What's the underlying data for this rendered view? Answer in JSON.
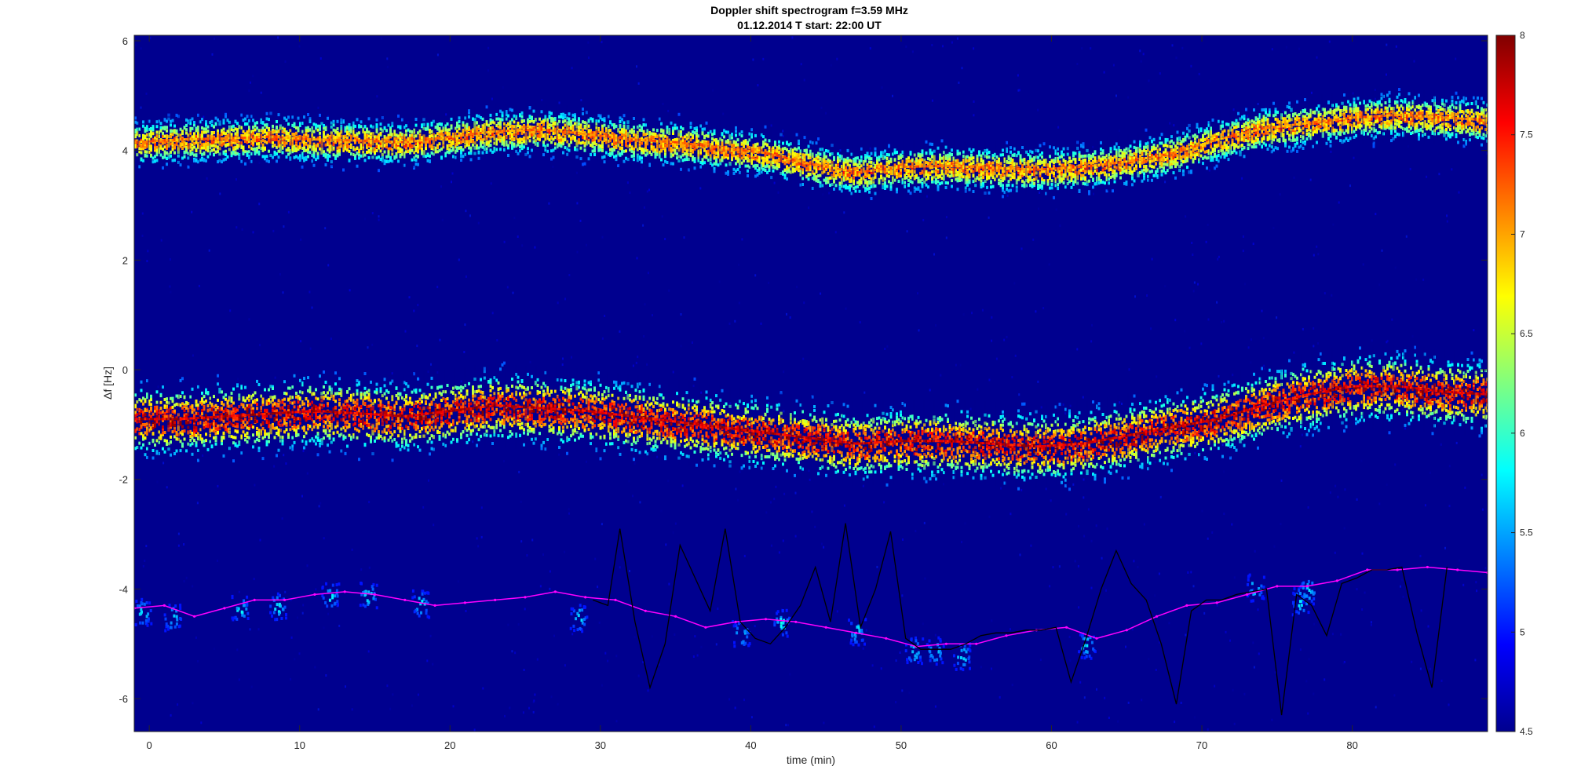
{
  "chart_data": {
    "type": "heatmap",
    "title": "Doppler shift spectrogram f=3.59 MHz",
    "subtitle": "01.12.2014   T start: 22:00 UT",
    "xlabel": "time (min)",
    "ylabel": "Δf [Hz]",
    "xlim": [
      -1,
      89
    ],
    "ylim": [
      -6.6,
      6.1
    ],
    "x_ticks": [
      0,
      10,
      20,
      30,
      40,
      50,
      60,
      70,
      80
    ],
    "x_tick_labels": [
      "0",
      "10",
      "20",
      "30",
      "40",
      "50",
      "60",
      "70",
      "80"
    ],
    "y_ticks": [
      6,
      4,
      2,
      0,
      -2,
      -4,
      -6
    ],
    "y_tick_labels": [
      "6",
      "4",
      "2",
      "0",
      "-2",
      "-4",
      "-6"
    ],
    "colormap": "jet",
    "background_color": "#00008f",
    "colorbar": {
      "range": [
        4.5,
        8
      ],
      "ticks": [
        8,
        7.5,
        7,
        6.5,
        6,
        5.5,
        5,
        4.5
      ],
      "tick_labels": [
        "8",
        "7.5",
        "7",
        "6.5",
        "6",
        "5.5",
        "5",
        "4.5"
      ]
    },
    "grid": false,
    "series": [
      {
        "style": "spectral-band",
        "x": [
          -1,
          2,
          5,
          8,
          11,
          14,
          17,
          20,
          23,
          26,
          29,
          32,
          35,
          38,
          41,
          44,
          47,
          50,
          53,
          56,
          59,
          62,
          65,
          68,
          71,
          74,
          77,
          80,
          83,
          86,
          89
        ],
        "y": [
          4.15,
          4.2,
          4.22,
          4.25,
          4.2,
          4.18,
          4.15,
          4.25,
          4.35,
          4.38,
          4.3,
          4.2,
          4.15,
          4.05,
          3.95,
          3.75,
          3.6,
          3.7,
          3.72,
          3.68,
          3.65,
          3.7,
          3.8,
          3.95,
          4.2,
          4.4,
          4.5,
          4.6,
          4.65,
          4.6,
          4.55
        ],
        "peak": 7.4
      },
      {
        "style": "spectral-band",
        "x": [
          -1,
          2,
          5,
          8,
          11,
          14,
          17,
          20,
          23,
          26,
          29,
          32,
          35,
          38,
          41,
          44,
          47,
          50,
          53,
          56,
          59,
          62,
          65,
          68,
          71,
          74,
          77,
          80,
          83,
          86,
          89
        ],
        "y": [
          -0.9,
          -0.9,
          -0.85,
          -0.8,
          -0.75,
          -0.8,
          -0.85,
          -0.75,
          -0.65,
          -0.7,
          -0.75,
          -0.85,
          -0.95,
          -1.05,
          -1.15,
          -1.25,
          -1.35,
          -1.3,
          -1.3,
          -1.35,
          -1.4,
          -1.35,
          -1.2,
          -1.05,
          -0.9,
          -0.65,
          -0.45,
          -0.3,
          -0.3,
          -0.4,
          -0.45
        ],
        "peak": 8.0
      },
      {
        "style": "magenta-line",
        "color": "#ff00ff",
        "x": [
          -1,
          1,
          3,
          5,
          7,
          9,
          11,
          13,
          15,
          17,
          19,
          21,
          23,
          25,
          27,
          29,
          31,
          33,
          35,
          37,
          39,
          41,
          43,
          45,
          47,
          49,
          51,
          53,
          55,
          57,
          59,
          61,
          63,
          65,
          67,
          69,
          71,
          73,
          75,
          77,
          79,
          81,
          83,
          85,
          87,
          89
        ],
        "y": [
          -4.35,
          -4.3,
          -4.5,
          -4.35,
          -4.2,
          -4.2,
          -4.1,
          -4.05,
          -4.1,
          -4.2,
          -4.3,
          -4.25,
          -4.2,
          -4.15,
          -4.05,
          -4.15,
          -4.2,
          -4.4,
          -4.5,
          -4.7,
          -4.6,
          -4.55,
          -4.6,
          -4.7,
          -4.8,
          -4.9,
          -5.05,
          -5.0,
          -5.0,
          -4.85,
          -4.75,
          -4.7,
          -4.9,
          -4.75,
          -4.5,
          -4.3,
          -4.25,
          -4.1,
          -3.95,
          -3.95,
          -3.85,
          -3.65,
          -3.65,
          -3.6,
          -3.65,
          -3.7
        ]
      },
      {
        "style": "black-line",
        "color": "#000000",
        "x": [
          29.5,
          30.5,
          31.3,
          32.3,
          33.3,
          34.3,
          35.3,
          36.3,
          37.3,
          38.3,
          39.3,
          40.3,
          41.3,
          42.3,
          43.3,
          44.3,
          45.3,
          46.3,
          47.3,
          48.3,
          49.3,
          50.3,
          51.3,
          52.3,
          53.3,
          54.3,
          55.3,
          56.3,
          57.3,
          58.3,
          59.3,
          60.3,
          61.3,
          62.3,
          63.3,
          64.3,
          65.3,
          66.3,
          67.3,
          68.3,
          69.3,
          70.3,
          71.3,
          72.3,
          73.3,
          74.3,
          75.3,
          76.3,
          77.3,
          78.3,
          79.3,
          80.3,
          81.3,
          82.3,
          83.3,
          84.3,
          85.3,
          86.3
        ],
        "y": [
          -4.2,
          -4.3,
          -2.9,
          -4.6,
          -5.8,
          -5.0,
          -3.2,
          -3.8,
          -4.4,
          -2.9,
          -4.6,
          -4.9,
          -5.0,
          -4.7,
          -4.3,
          -3.6,
          -4.6,
          -2.8,
          -4.7,
          -4.0,
          -2.95,
          -4.9,
          -5.1,
          -5.1,
          -5.1,
          -5.0,
          -4.85,
          -4.8,
          -4.8,
          -4.75,
          -4.75,
          -4.7,
          -5.7,
          -4.9,
          -4.0,
          -3.3,
          -3.9,
          -4.2,
          -5.0,
          -6.1,
          -4.4,
          -4.2,
          -4.2,
          -4.1,
          -4.05,
          -4.0,
          -6.3,
          -4.1,
          -4.3,
          -4.85,
          -3.9,
          -3.8,
          -3.65,
          -3.65,
          -3.6,
          -4.8,
          -5.8,
          -3.6
        ]
      },
      {
        "style": "patches",
        "x": [
          -0.5,
          1.5,
          6,
          8.5,
          12,
          14.5,
          18,
          28.5,
          39.3,
          42,
          47,
          50.8,
          52.2,
          54,
          62.3,
          73.5,
          76.5,
          77
        ],
        "y": [
          -4.4,
          -4.5,
          -4.35,
          -4.3,
          -4.1,
          -4.1,
          -4.25,
          -4.5,
          -4.8,
          -4.6,
          -4.75,
          -5.1,
          -5.1,
          -5.2,
          -5.0,
          -3.95,
          -4.2,
          -4.0
        ],
        "peak": 6.0
      }
    ]
  }
}
